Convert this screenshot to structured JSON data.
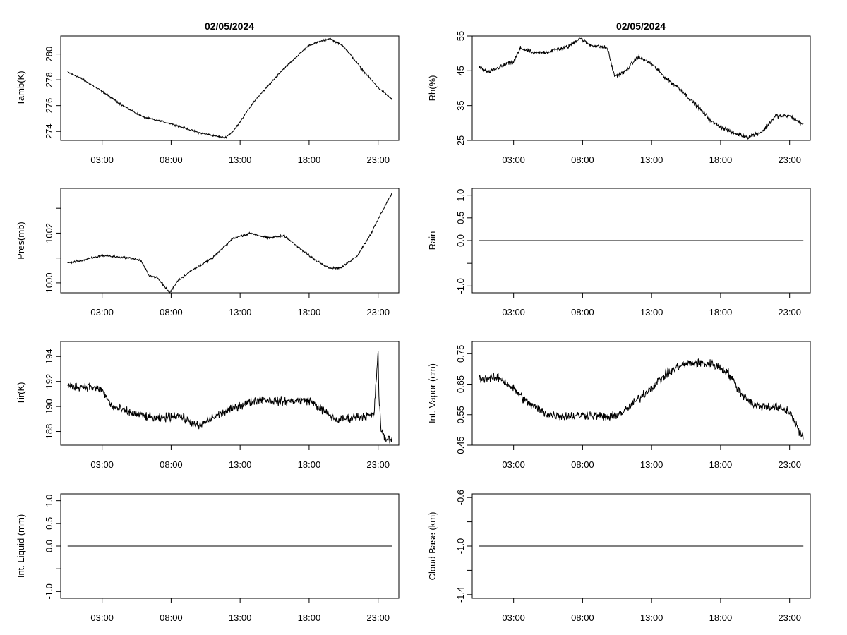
{
  "figure": {
    "titles": [
      "02/05/2024",
      "02/05/2024"
    ],
    "x_tick_labels": [
      "03:00",
      "08:00",
      "13:00",
      "18:00",
      "23:00"
    ]
  },
  "chart_data": [
    {
      "type": "line",
      "title": "02/05/2024",
      "ylabel": "Tamb(K)",
      "xlabel": "",
      "xlim": [
        0,
        24.5
      ],
      "x_ticks": [
        3,
        8,
        13,
        18,
        23
      ],
      "x_tick_labels": [
        "03:00",
        "08:00",
        "13:00",
        "18:00",
        "23:00"
      ],
      "ylim": [
        273.3,
        281.4
      ],
      "y_ticks": [
        274,
        276,
        278,
        280
      ],
      "y_tick_labels": [
        "274",
        "276",
        "278",
        "280"
      ],
      "x": [
        0.5,
        1.5,
        3,
        4.5,
        6,
        8,
        10,
        11.9,
        12.5,
        14,
        16,
        18,
        19.5,
        20.5,
        22,
        23,
        24
      ],
      "values": [
        278.6,
        278.1,
        277.1,
        276.0,
        275.1,
        274.6,
        273.9,
        273.5,
        274.0,
        276.3,
        278.7,
        280.7,
        281.2,
        280.6,
        278.6,
        277.4,
        276.5
      ],
      "noise": 0.06
    },
    {
      "type": "line",
      "title": "02/05/2024",
      "ylabel": "Rh(%)",
      "xlabel": "",
      "xlim": [
        0,
        24.5
      ],
      "x_ticks": [
        3,
        8,
        13,
        18,
        23
      ],
      "x_tick_labels": [
        "03:00",
        "08:00",
        "13:00",
        "18:00",
        "23:00"
      ],
      "ylim": [
        25,
        55
      ],
      "y_ticks": [
        25,
        35,
        45,
        55
      ],
      "y_tick_labels": [
        "25",
        "35",
        "45",
        "55"
      ],
      "x": [
        0.5,
        1.2,
        2.5,
        3,
        3.5,
        4.5,
        5.5,
        7,
        7.8,
        8.5,
        9.8,
        10.3,
        11,
        12,
        13,
        14,
        15,
        16,
        17.5,
        19,
        20,
        21,
        22,
        23,
        24
      ],
      "values": [
        46,
        44.5,
        47,
        47.5,
        51.5,
        50,
        50.5,
        52,
        54.5,
        52.5,
        51.5,
        43.5,
        44.5,
        49,
        47,
        43,
        40,
        36,
        30,
        27,
        26,
        27.5,
        32,
        32,
        29.5
      ],
      "noise": 0.5
    },
    {
      "type": "line",
      "title": "",
      "ylabel": "Pres(mb)",
      "xlabel": "",
      "xlim": [
        0,
        24.5
      ],
      "x_ticks": [
        3,
        8,
        13,
        18,
        23
      ],
      "x_tick_labels": [
        "03:00",
        "08:00",
        "13:00",
        "18:00",
        "23:00"
      ],
      "ylim": [
        999.6,
        1003.8
      ],
      "y_ticks": [
        1000,
        1001,
        1002,
        1003
      ],
      "y_tick_labels": [
        "1000",
        "",
        "1002",
        ""
      ],
      "x": [
        0.5,
        1.5,
        3,
        5,
        5.8,
        6.4,
        7,
        7.9,
        8.5,
        9.5,
        11,
        12.5,
        13.8,
        15,
        16.2,
        17.5,
        18.5,
        19.5,
        20.3,
        21.5,
        22.5,
        23.5,
        24
      ],
      "values": [
        1000.8,
        1000.9,
        1001.1,
        1001.0,
        1000.9,
        1000.3,
        1000.2,
        999.6,
        1000.1,
        1000.5,
        1001.0,
        1001.8,
        1002.0,
        1001.8,
        1001.9,
        1001.3,
        1000.9,
        1000.6,
        1000.6,
        1001.1,
        1002.0,
        1003.1,
        1003.6
      ],
      "noise": 0.035
    },
    {
      "type": "line",
      "title": "",
      "ylabel": "Rain",
      "xlabel": "",
      "xlim": [
        0,
        24.5
      ],
      "x_ticks": [
        3,
        8,
        13,
        18,
        23
      ],
      "x_tick_labels": [
        "03:00",
        "08:00",
        "13:00",
        "18:00",
        "23:00"
      ],
      "ylim": [
        -1.15,
        1.15
      ],
      "y_ticks": [
        -1.0,
        -0.5,
        0.0,
        0.5,
        1.0
      ],
      "y_tick_labels": [
        "-1.0",
        "",
        "0.0",
        "0.5",
        "1.0"
      ],
      "x": [
        0.5,
        24
      ],
      "values": [
        0,
        0
      ],
      "noise": 0
    },
    {
      "type": "line",
      "title": "",
      "ylabel": "Tir(K)",
      "xlabel": "",
      "xlim": [
        0,
        24.5
      ],
      "x_ticks": [
        3,
        8,
        13,
        18,
        23
      ],
      "x_tick_labels": [
        "03:00",
        "08:00",
        "13:00",
        "18:00",
        "23:00"
      ],
      "ylim": [
        186.9,
        195.2
      ],
      "y_ticks": [
        188,
        190,
        192,
        194
      ],
      "y_tick_labels": [
        "188",
        "190",
        "192",
        "194"
      ],
      "x": [
        0.5,
        2,
        3,
        3.7,
        5,
        7,
        8.5,
        10,
        11,
        13,
        14.5,
        16,
        18,
        19,
        20,
        21.5,
        22.7,
        23,
        23.05,
        23.2,
        23.4,
        24
      ],
      "values": [
        191.6,
        191.6,
        191.3,
        190.0,
        189.5,
        189.0,
        189.3,
        188.4,
        189.1,
        190.1,
        190.6,
        190.4,
        190.5,
        189.7,
        188.9,
        189.2,
        189.3,
        194.5,
        191.0,
        188.3,
        187.5,
        187.3
      ],
      "noise": 0.3
    },
    {
      "type": "line",
      "title": "",
      "ylabel": "Int. Vapor (cm)",
      "xlabel": "",
      "xlim": [
        0,
        24.5
      ],
      "x_ticks": [
        3,
        8,
        13,
        18,
        23
      ],
      "x_tick_labels": [
        "03:00",
        "08:00",
        "13:00",
        "18:00",
        "23:00"
      ],
      "ylim": [
        0.45,
        0.79
      ],
      "y_ticks": [
        0.45,
        0.55,
        0.65,
        0.75
      ],
      "y_tick_labels": [
        "0.45",
        "0.55",
        "0.65",
        "0.75"
      ],
      "x": [
        0.5,
        2,
        3,
        4,
        5.5,
        7,
        8.5,
        10,
        11,
        12.5,
        14,
        15,
        16,
        17.5,
        18.5,
        19.5,
        20.5,
        22,
        23,
        24
      ],
      "values": [
        0.67,
        0.67,
        0.635,
        0.59,
        0.55,
        0.545,
        0.55,
        0.54,
        0.56,
        0.62,
        0.68,
        0.71,
        0.72,
        0.715,
        0.69,
        0.62,
        0.58,
        0.575,
        0.56,
        0.47
      ],
      "noise": 0.013
    },
    {
      "type": "line",
      "title": "",
      "ylabel": "Int. Liquid (mm)",
      "xlabel": "",
      "xlim": [
        0,
        24.5
      ],
      "x_ticks": [
        3,
        8,
        13,
        18,
        23
      ],
      "x_tick_labels": [
        "03:00",
        "08:00",
        "13:00",
        "18:00",
        "23:00"
      ],
      "ylim": [
        -1.15,
        1.15
      ],
      "y_ticks": [
        -1.0,
        -0.5,
        0.0,
        0.5,
        1.0
      ],
      "y_tick_labels": [
        "-1.0",
        "",
        "0.0",
        "0.5",
        "1.0"
      ],
      "x": [
        0.5,
        24
      ],
      "values": [
        0,
        0
      ],
      "noise": 0
    },
    {
      "type": "line",
      "title": "",
      "ylabel": "Cloud Base (km)",
      "xlabel": "",
      "xlim": [
        0,
        24.5
      ],
      "x_ticks": [
        3,
        8,
        13,
        18,
        23
      ],
      "x_tick_labels": [
        "03:00",
        "08:00",
        "13:00",
        "18:00",
        "23:00"
      ],
      "ylim": [
        -1.43,
        -0.57
      ],
      "y_ticks": [
        -1.4,
        -1.2,
        -1.0,
        -0.8,
        -0.6
      ],
      "y_tick_labels": [
        "-1.4",
        "",
        "-1.0",
        "",
        "-0.6"
      ],
      "x": [
        0.5,
        24
      ],
      "values": [
        -1,
        -1
      ],
      "noise": 0
    }
  ]
}
